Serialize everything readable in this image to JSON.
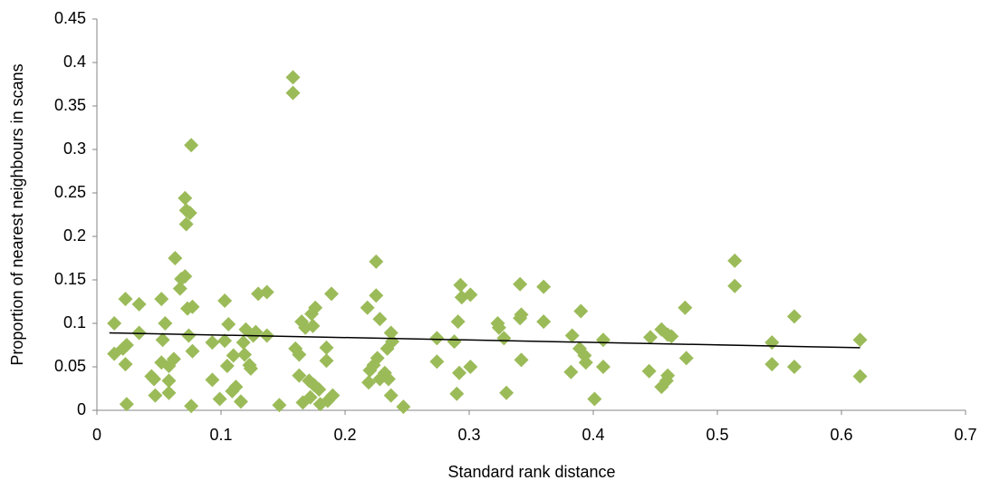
{
  "chart_data": {
    "type": "scatter",
    "x_label": "Standard rank distance",
    "y_label": "Proportion of nearest neighbours in scans",
    "xlim": [
      0,
      0.7
    ],
    "xticks": [
      0,
      0.1,
      0.2,
      0.3,
      0.4,
      0.5,
      0.6,
      0.7
    ],
    "ylim": [
      0,
      0.45
    ],
    "yticks": [
      0,
      0.05,
      0.1,
      0.15,
      0.2,
      0.25,
      0.3,
      0.35,
      0.4,
      0.45
    ],
    "grid": false,
    "series": [
      {
        "color": "#9bbb59",
        "x": [
          0.014,
          0.014,
          0.023,
          0.023,
          0.024,
          0.021,
          0.024,
          0.034,
          0.034,
          0.044,
          0.046,
          0.047,
          0.052,
          0.053,
          0.052,
          0.055,
          0.058,
          0.058,
          0.058,
          0.062,
          0.063,
          0.067,
          0.068,
          0.071,
          0.071,
          0.072,
          0.072,
          0.075,
          0.076,
          0.073,
          0.077,
          0.074,
          0.077,
          0.076,
          0.093,
          0.093,
          0.099,
          0.103,
          0.103,
          0.106,
          0.105,
          0.11,
          0.109,
          0.112,
          0.116,
          0.118,
          0.119,
          0.12,
          0.123,
          0.124,
          0.126,
          0.128,
          0.13,
          0.137,
          0.137,
          0.147,
          0.158,
          0.158,
          0.16,
          0.163,
          0.163,
          0.165,
          0.166,
          0.168,
          0.171,
          0.172,
          0.173,
          0.174,
          0.175,
          0.176,
          0.179,
          0.18,
          0.185,
          0.185,
          0.186,
          0.189,
          0.19,
          0.218,
          0.219,
          0.22,
          0.223,
          0.225,
          0.225,
          0.226,
          0.228,
          0.228,
          0.232,
          0.234,
          0.235,
          0.237,
          0.237,
          0.238,
          0.247,
          0.274,
          0.274,
          0.288,
          0.29,
          0.291,
          0.292,
          0.293,
          0.294,
          0.301,
          0.301,
          0.323,
          0.324,
          0.328,
          0.33,
          0.341,
          0.341,
          0.342,
          0.342,
          0.36,
          0.36,
          0.382,
          0.383,
          0.389,
          0.39,
          0.393,
          0.394,
          0.401,
          0.408,
          0.408,
          0.445,
          0.446,
          0.455,
          0.455,
          0.459,
          0.46,
          0.46,
          0.463,
          0.474,
          0.475,
          0.514,
          0.514,
          0.544,
          0.544,
          0.562,
          0.562,
          0.615,
          0.615
        ],
        "values": [
          0.1,
          0.065,
          0.128,
          0.053,
          0.075,
          0.071,
          0.007,
          0.122,
          0.089,
          0.039,
          0.036,
          0.017,
          0.128,
          0.081,
          0.055,
          0.1,
          0.051,
          0.034,
          0.02,
          0.059,
          0.175,
          0.14,
          0.151,
          0.154,
          0.244,
          0.23,
          0.214,
          0.227,
          0.305,
          0.117,
          0.119,
          0.086,
          0.068,
          0.005,
          0.078,
          0.035,
          0.013,
          0.126,
          0.08,
          0.099,
          0.051,
          0.063,
          0.022,
          0.027,
          0.01,
          0.078,
          0.064,
          0.093,
          0.052,
          0.048,
          0.086,
          0.09,
          0.134,
          0.136,
          0.086,
          0.006,
          0.383,
          0.365,
          0.071,
          0.064,
          0.04,
          0.102,
          0.009,
          0.095,
          0.034,
          0.015,
          0.111,
          0.097,
          0.029,
          0.118,
          0.024,
          0.007,
          0.072,
          0.057,
          0.011,
          0.134,
          0.017,
          0.118,
          0.032,
          0.046,
          0.052,
          0.171,
          0.132,
          0.06,
          0.105,
          0.036,
          0.043,
          0.071,
          0.036,
          0.017,
          0.089,
          0.079,
          0.004,
          0.083,
          0.056,
          0.079,
          0.019,
          0.102,
          0.043,
          0.144,
          0.13,
          0.133,
          0.05,
          0.1,
          0.095,
          0.083,
          0.02,
          0.145,
          0.106,
          0.11,
          0.058,
          0.142,
          0.102,
          0.044,
          0.086,
          0.071,
          0.114,
          0.063,
          0.055,
          0.013,
          0.081,
          0.05,
          0.045,
          0.084,
          0.027,
          0.093,
          0.034,
          0.087,
          0.04,
          0.085,
          0.118,
          0.06,
          0.172,
          0.143,
          0.078,
          0.053,
          0.108,
          0.05,
          0.081,
          0.039
        ]
      }
    ],
    "trendline": {
      "color": "#000000",
      "x": [
        0.01,
        0.615
      ],
      "values": [
        0.089,
        0.072
      ]
    }
  }
}
